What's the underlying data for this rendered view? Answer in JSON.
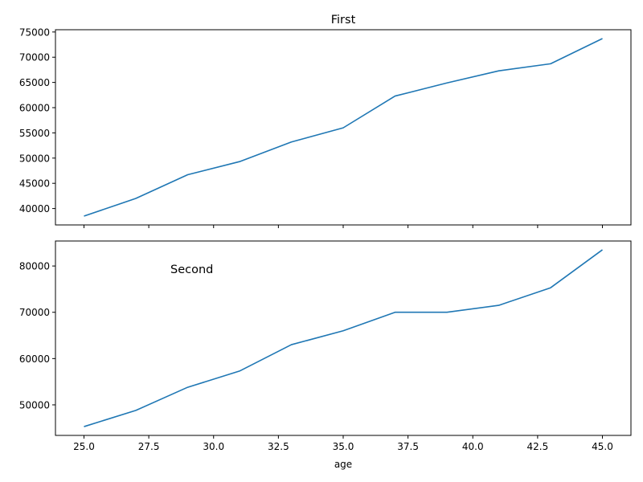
{
  "chart_data": [
    {
      "type": "line",
      "title": "First",
      "xlabel": "",
      "ylabel": "",
      "x": [
        25,
        27,
        29,
        31,
        33,
        35,
        37,
        39,
        41,
        43,
        45
      ],
      "series": [
        {
          "values": [
            38500,
            42000,
            46700,
            49300,
            53200,
            56000,
            62300,
            64900,
            67300,
            68700,
            73700
          ]
        }
      ],
      "xlim": [
        23.9,
        46.1
      ],
      "ylim": [
        36750,
        75450
      ],
      "x_ticks": [
        25.0,
        27.5,
        30.0,
        32.5,
        35.0,
        37.5,
        40.0,
        42.5,
        45.0
      ],
      "x_tick_labels_visible": false,
      "y_ticks": [
        40000,
        45000,
        50000,
        55000,
        60000,
        65000,
        70000,
        75000
      ],
      "y_tick_labels": [
        "40000",
        "45000",
        "50000",
        "55000",
        "60000",
        "65000",
        "70000",
        "75000"
      ],
      "grid": false,
      "color": "#1f77b4"
    },
    {
      "type": "line",
      "title": "Second",
      "title_placement": "inside-top-left",
      "xlabel": "age",
      "ylabel": "",
      "x": [
        25,
        27,
        29,
        31,
        33,
        35,
        37,
        39,
        41,
        43,
        45
      ],
      "series": [
        {
          "values": [
            45300,
            48800,
            53800,
            57300,
            63000,
            66000,
            70000,
            70000,
            71500,
            75300,
            83500
          ]
        }
      ],
      "xlim": [
        23.9,
        46.1
      ],
      "ylim": [
        43400,
        85400
      ],
      "x_ticks": [
        25.0,
        27.5,
        30.0,
        32.5,
        35.0,
        37.5,
        40.0,
        42.5,
        45.0
      ],
      "x_tick_labels": [
        "25.0",
        "27.5",
        "30.0",
        "32.5",
        "35.0",
        "37.5",
        "40.0",
        "42.5",
        "45.0"
      ],
      "x_tick_labels_visible": true,
      "y_ticks": [
        50000,
        60000,
        70000,
        80000
      ],
      "y_tick_labels": [
        "50000",
        "60000",
        "70000",
        "80000"
      ],
      "grid": false,
      "color": "#1f77b4"
    }
  ]
}
